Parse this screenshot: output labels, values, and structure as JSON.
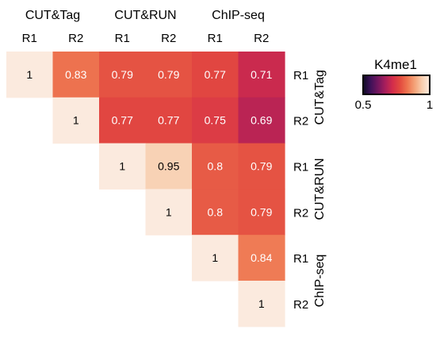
{
  "chart_data": {
    "type": "heatmap",
    "title": "",
    "legend": {
      "title": "K4me1",
      "min_label": "0.5",
      "max_label": "1",
      "range": [
        0.5,
        1
      ],
      "placement": "top-right"
    },
    "groups": [
      {
        "name": "CUT&Tag",
        "reps": [
          "R1",
          "R2"
        ]
      },
      {
        "name": "CUT&RUN",
        "reps": [
          "R1",
          "R2"
        ]
      },
      {
        "name": "ChIP-seq",
        "reps": [
          "R1",
          "R2"
        ]
      }
    ],
    "matrix": [
      [
        1,
        0.83,
        0.79,
        0.79,
        0.77,
        0.71
      ],
      [
        null,
        1,
        0.77,
        0.77,
        0.75,
        0.69
      ],
      [
        null,
        null,
        1,
        0.95,
        0.8,
        0.79
      ],
      [
        null,
        null,
        null,
        1,
        0.8,
        0.79
      ],
      [
        null,
        null,
        null,
        null,
        1,
        0.84
      ],
      [
        null,
        null,
        null,
        null,
        null,
        1
      ]
    ],
    "cell_labels": [
      [
        "1",
        "0.83",
        "0.79",
        "0.79",
        "0.77",
        "0.71"
      ],
      [
        null,
        "1",
        "0.77",
        "0.77",
        "0.75",
        "0.69"
      ],
      [
        null,
        null,
        "1",
        "0.95",
        "0.8",
        "0.79"
      ],
      [
        null,
        null,
        null,
        "1",
        "0.8",
        "0.79"
      ],
      [
        null,
        null,
        null,
        null,
        "1",
        "0.84"
      ],
      [
        null,
        null,
        null,
        null,
        null,
        "1"
      ]
    ]
  },
  "colors": {
    "scale": [
      "#0c0a22",
      "#3d1158",
      "#72165e",
      "#a81e5c",
      "#d42d4a",
      "#e34a3f",
      "#ee7550",
      "#f4a47a",
      "#f8cfb0",
      "#fbeade"
    ],
    "text_dark": "#000000",
    "text_light": "#ffffff"
  }
}
